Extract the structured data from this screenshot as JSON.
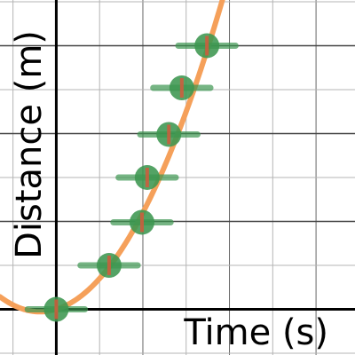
{
  "chart_data": {
    "type": "scatter",
    "title": "",
    "xlabel": "Time (s)",
    "ylabel": "Distance (m)",
    "xlim": [
      -0.65,
      3.45
    ],
    "ylim": [
      -0.52,
      3.52
    ],
    "grid": true,
    "grid_step": 0.5,
    "tick_labels_shown": false,
    "colors": {
      "curve": "#f5a05a",
      "point": "#3c9650",
      "error_bar": "#3c9650",
      "marker_dot": "#d25a3c",
      "grid": "#b4b4b4",
      "axis": "#000000"
    },
    "series": [
      {
        "points": [
          {
            "x": 0.0,
            "y": 0.0,
            "x_err": 0.33
          },
          {
            "x": 0.61,
            "y": 0.5,
            "x_err": 0.33
          },
          {
            "x": 0.99,
            "y": 0.99,
            "x_err": 0.33
          },
          {
            "x": 1.05,
            "y": 1.5,
            "x_err": 0.33
          },
          {
            "x": 1.3,
            "y": 1.99,
            "x_err": 0.33
          },
          {
            "x": 1.45,
            "y": 2.52,
            "x_err": 0.33
          },
          {
            "x": 1.74,
            "y": 3.0,
            "x_err": 0.33
          }
        ]
      }
    ],
    "fit_curve": {
      "type": "quadratic",
      "a": 0.8,
      "b": 0.3,
      "c": 0.0,
      "x_range": [
        -0.65,
        1.95
      ]
    }
  }
}
